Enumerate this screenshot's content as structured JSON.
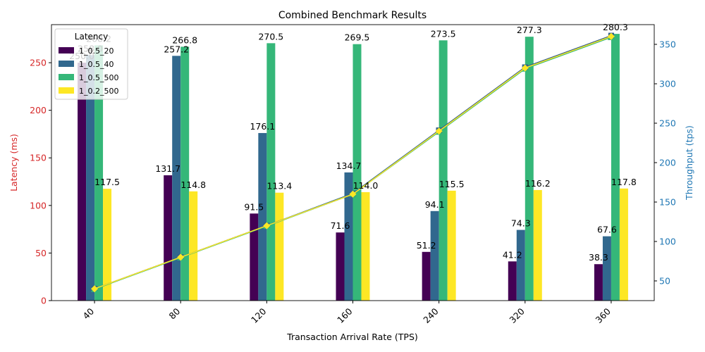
{
  "chart_data": {
    "type": "bar",
    "title": "Combined Benchmark Results",
    "xlabel": "Transaction Arrival Rate (TPS)",
    "ylabel": "Latency (ms)",
    "ylabel_right": "Throughput (tps)",
    "categories": [
      "40",
      "80",
      "120",
      "160",
      "240",
      "320",
      "360"
    ],
    "ylim": [
      0,
      290
    ],
    "y_ticks": [
      0,
      50,
      100,
      150,
      200,
      250
    ],
    "ylim_right": [
      25,
      375
    ],
    "y_ticks_right": [
      50,
      100,
      150,
      200,
      250,
      300,
      350
    ],
    "legend": {
      "title": "Latency",
      "position": "top-left"
    },
    "series": [
      {
        "name": "1_0.5_20",
        "color": "#440154",
        "values": [
          250.0,
          131.7,
          91.5,
          71.6,
          51.2,
          41.2,
          38.3
        ]
      },
      {
        "name": "1_0.5_40",
        "color": "#31688e",
        "values": [
          258.0,
          257.2,
          176.1,
          134.7,
          94.1,
          74.3,
          67.6
        ]
      },
      {
        "name": "1_0.5_500",
        "color": "#35b779",
        "values": [
          268.2,
          266.8,
          270.5,
          269.5,
          273.5,
          277.3,
          280.3
        ]
      },
      {
        "name": "1_0.2_500",
        "color": "#fde725",
        "values": [
          117.5,
          114.8,
          113.4,
          114.0,
          115.5,
          116.2,
          117.8
        ]
      }
    ],
    "data_labels": [
      [
        "250.0",
        "131.7",
        "91.5",
        "71.6",
        "51.2",
        "41.2",
        "38.3"
      ],
      [
        "258.0",
        "257.2",
        "176.1",
        "134.7",
        "94.1",
        "74.3",
        "67.6"
      ],
      [
        "268.2",
        "266.8",
        "270.5",
        "269.5",
        "273.5",
        "277.3",
        "280.3"
      ],
      [
        "117.5",
        "114.8",
        "113.4",
        "114.0",
        "115.5",
        "116.2",
        "117.8"
      ]
    ],
    "throughput_series": [
      {
        "color": "#440154",
        "marker": "square",
        "values": [
          40,
          80,
          120,
          160,
          241,
          321,
          361
        ]
      },
      {
        "color": "#31688e",
        "marker": "square",
        "values": [
          40,
          80,
          120,
          161,
          241,
          321,
          361
        ]
      },
      {
        "color": "#35b779",
        "marker": "triangle",
        "values": [
          39.5,
          79.5,
          119.5,
          160,
          239,
          319,
          359
        ]
      },
      {
        "color": "#fde725",
        "marker": "diamond",
        "values": [
          40,
          80,
          120,
          160,
          240,
          320,
          360
        ]
      }
    ],
    "colors": {
      "left_axis": "#d62728",
      "right_axis": "#1f77b4"
    }
  }
}
